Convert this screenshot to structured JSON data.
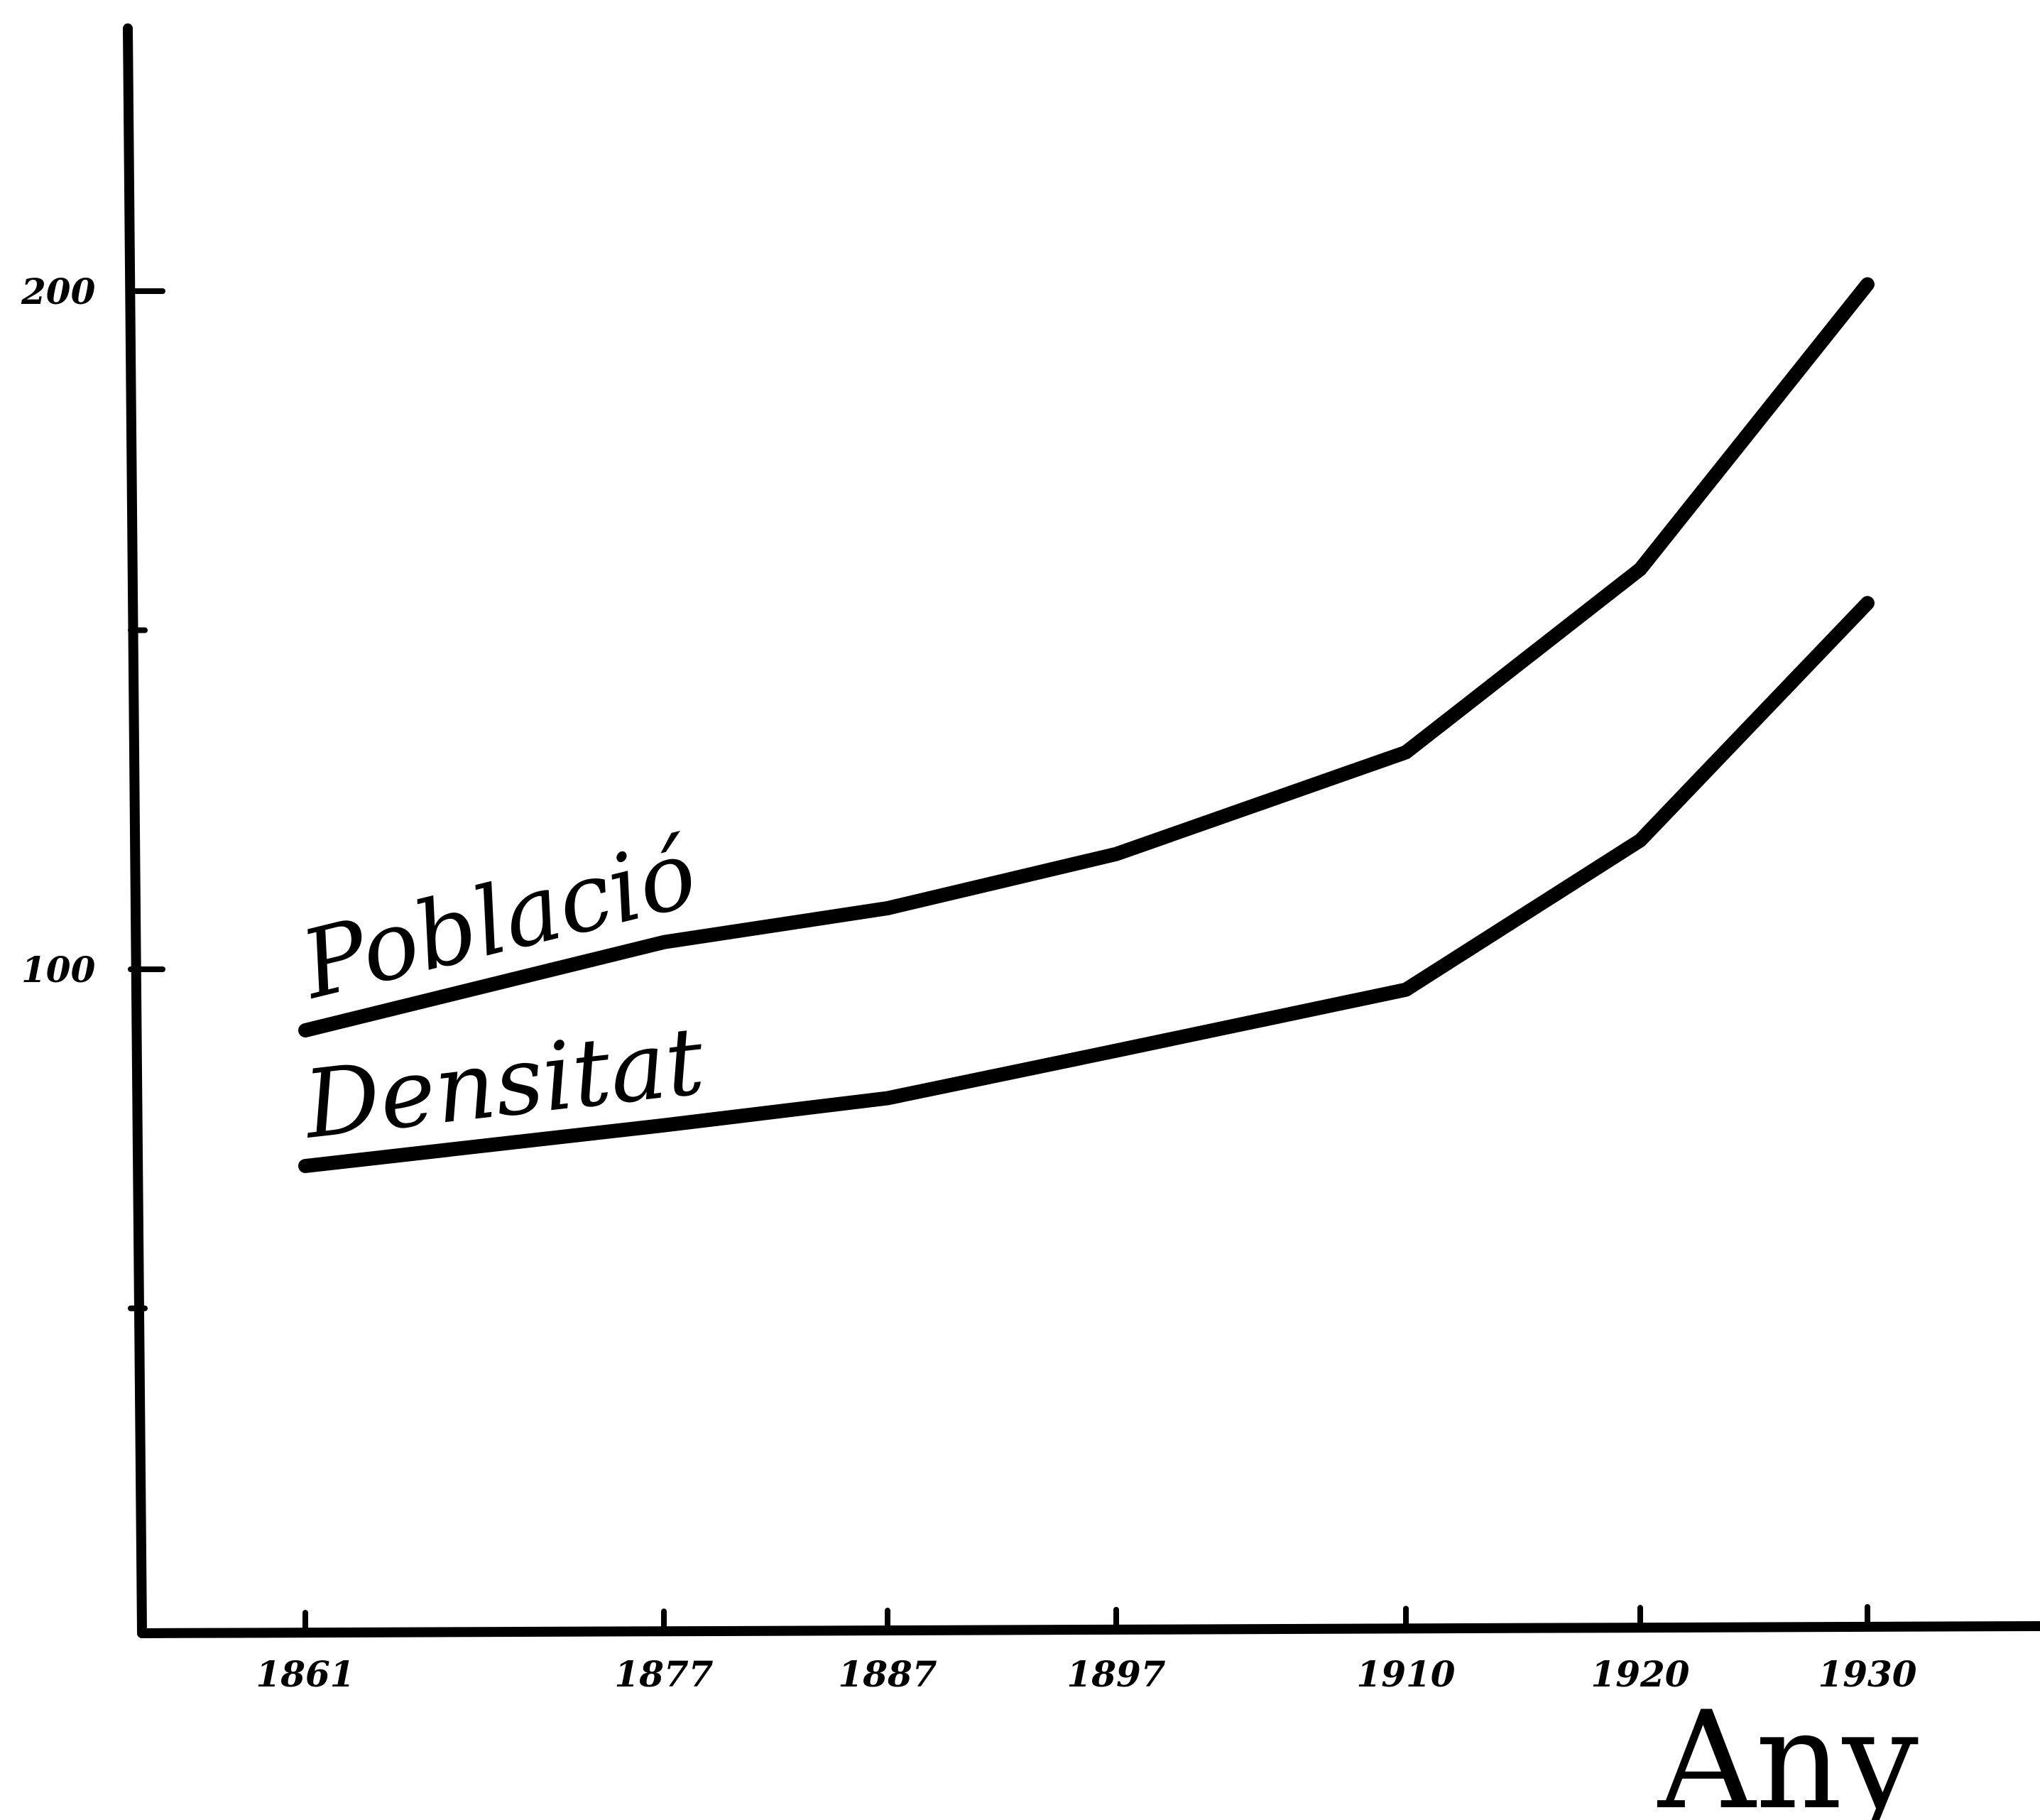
{
  "chart_data": {
    "type": "line",
    "title": "",
    "xlabel": "Any",
    "ylabel": "",
    "x": [
      1861,
      1877,
      1887,
      1897,
      1910,
      1920,
      1930
    ],
    "x_tick_labels": [
      "1861",
      "1877",
      "1887",
      "1897",
      "1910",
      "1920",
      "1930"
    ],
    "y_ticks": [
      50,
      100,
      150,
      200
    ],
    "y_tick_labels": [
      "",
      "100",
      "",
      "200"
    ],
    "ylim": [
      0,
      240
    ],
    "grid": false,
    "series": [
      {
        "name": "Població",
        "x": [
          1861,
          1877,
          1887,
          1897,
          1910,
          1920,
          1930
        ],
        "values": [
          91,
          104,
          109,
          117,
          132,
          159,
          201
        ]
      },
      {
        "name": "Densitat",
        "x": [
          1861,
          1877,
          1887,
          1897,
          1910,
          1920,
          1930
        ],
        "values": [
          71,
          77,
          81,
          88,
          97,
          119,
          154
        ]
      }
    ],
    "colors": {
      "ink": "#000000",
      "background": "#ffffff"
    }
  }
}
